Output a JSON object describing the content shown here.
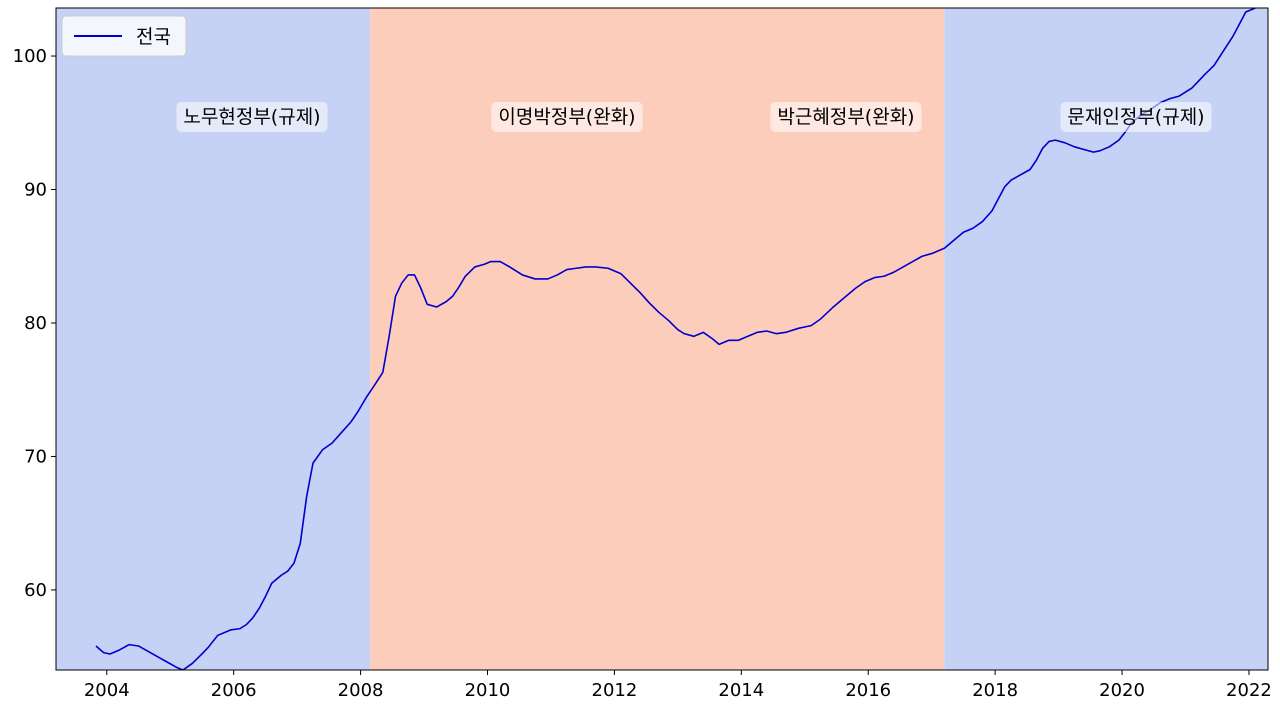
{
  "chart_data": {
    "type": "line",
    "title": "",
    "xlabel": "",
    "ylabel": "",
    "xlim": [
      2003.2,
      2022.3
    ],
    "ylim": [
      54.0,
      103.6
    ],
    "x_ticks": [
      2004,
      2006,
      2008,
      2010,
      2012,
      2014,
      2016,
      2018,
      2020,
      2022
    ],
    "x_tick_labels": [
      "2004",
      "2006",
      "2008",
      "2010",
      "2012",
      "2014",
      "2016",
      "2018",
      "2020",
      "2022"
    ],
    "y_ticks": [
      60,
      70,
      80,
      90,
      100
    ],
    "y_tick_labels": [
      "60",
      "70",
      "80",
      "90",
      "100"
    ],
    "grid": false,
    "legend": {
      "placement": "top-left",
      "entries": [
        "전국"
      ]
    },
    "colors": {
      "line": "#0000cc",
      "regulation_band": "#c5d1f5",
      "easing_band": "#fdcdbc"
    },
    "periods": [
      {
        "label": "노무현정부(규제)",
        "start": 2003.2,
        "end": 2008.15,
        "kind": "regulation"
      },
      {
        "label": "이명박정부(완화)",
        "start": 2008.15,
        "end": 2013.15,
        "kind": "easing"
      },
      {
        "label": "박근혜정부(완화)",
        "start": 2013.15,
        "end": 2017.2,
        "kind": "easing"
      },
      {
        "label": "문재인정부(규제)",
        "start": 2017.2,
        "end": 2022.3,
        "kind": "regulation"
      }
    ],
    "series": [
      {
        "name": "전국",
        "x": [
          2003.83,
          2003.95,
          2004.05,
          2004.2,
          2004.35,
          2004.5,
          2004.65,
          2004.8,
          2004.95,
          2005.1,
          2005.2,
          2005.35,
          2005.5,
          2005.6,
          2005.75,
          2005.95,
          2006.1,
          2006.2,
          2006.3,
          2006.4,
          2006.5,
          2006.6,
          2006.75,
          2006.85,
          2006.95,
          2007.05,
          2007.15,
          2007.25,
          2007.4,
          2007.55,
          2007.7,
          2007.85,
          2007.95,
          2008.1,
          2008.2,
          2008.35,
          2008.45,
          2008.55,
          2008.65,
          2008.75,
          2008.85,
          2008.95,
          2009.05,
          2009.2,
          2009.35,
          2009.45,
          2009.55,
          2009.65,
          2009.8,
          2009.95,
          2010.05,
          2010.2,
          2010.35,
          2010.55,
          2010.75,
          2010.95,
          2011.1,
          2011.25,
          2011.4,
          2011.55,
          2011.7,
          2011.9,
          2012.1,
          2012.25,
          2012.4,
          2012.55,
          2012.7,
          2012.85,
          2013.0,
          2013.1,
          2013.25,
          2013.4,
          2013.55,
          2013.65,
          2013.8,
          2013.95,
          2014.1,
          2014.25,
          2014.4,
          2014.55,
          2014.7,
          2014.9,
          2015.1,
          2015.25,
          2015.45,
          2015.65,
          2015.8,
          2015.95,
          2016.1,
          2016.25,
          2016.4,
          2016.55,
          2016.7,
          2016.85,
          2017.0,
          2017.2,
          2017.35,
          2017.5,
          2017.65,
          2017.8,
          2017.95,
          2018.05,
          2018.15,
          2018.25,
          2018.4,
          2018.55,
          2018.65,
          2018.75,
          2018.85,
          2018.95,
          2019.1,
          2019.25,
          2019.4,
          2019.55,
          2019.65,
          2019.8,
          2019.95,
          2020.05,
          2020.15,
          2020.3,
          2020.45,
          2020.6,
          2020.75,
          2020.9,
          2021.0,
          2021.1,
          2021.2,
          2021.3,
          2021.45,
          2021.6,
          2021.75,
          2021.85,
          2021.95,
          2022.1
        ],
        "y": [
          55.8,
          55.3,
          55.2,
          55.5,
          55.9,
          55.8,
          55.4,
          55.0,
          54.6,
          54.2,
          54.0,
          54.5,
          55.2,
          55.7,
          56.6,
          57.0,
          57.1,
          57.4,
          57.9,
          58.6,
          59.5,
          60.5,
          61.1,
          61.4,
          62.0,
          63.5,
          67.0,
          69.5,
          70.5,
          71.0,
          71.8,
          72.6,
          73.3,
          74.5,
          75.2,
          76.3,
          79.0,
          82.0,
          83.0,
          83.6,
          83.6,
          82.6,
          81.4,
          81.2,
          81.6,
          82.0,
          82.7,
          83.5,
          84.2,
          84.4,
          84.6,
          84.6,
          84.2,
          83.6,
          83.3,
          83.3,
          83.6,
          84.0,
          84.1,
          84.2,
          84.2,
          84.1,
          83.7,
          83.0,
          82.3,
          81.5,
          80.8,
          80.2,
          79.5,
          79.2,
          79.0,
          79.3,
          78.8,
          78.4,
          78.7,
          78.7,
          79.0,
          79.3,
          79.4,
          79.2,
          79.3,
          79.6,
          79.8,
          80.3,
          81.2,
          82.0,
          82.6,
          83.1,
          83.4,
          83.5,
          83.8,
          84.2,
          84.6,
          85.0,
          85.2,
          85.6,
          86.2,
          86.8,
          87.1,
          87.6,
          88.4,
          89.3,
          90.2,
          90.7,
          91.1,
          91.5,
          92.2,
          93.1,
          93.6,
          93.7,
          93.5,
          93.2,
          93.0,
          92.8,
          92.9,
          93.2,
          93.7,
          94.3,
          95.0,
          95.6,
          96.0,
          96.5,
          96.8,
          97.0,
          97.3,
          97.6,
          98.1,
          98.6,
          99.3,
          100.4,
          101.5,
          102.4,
          103.3,
          103.6
        ]
      }
    ]
  }
}
